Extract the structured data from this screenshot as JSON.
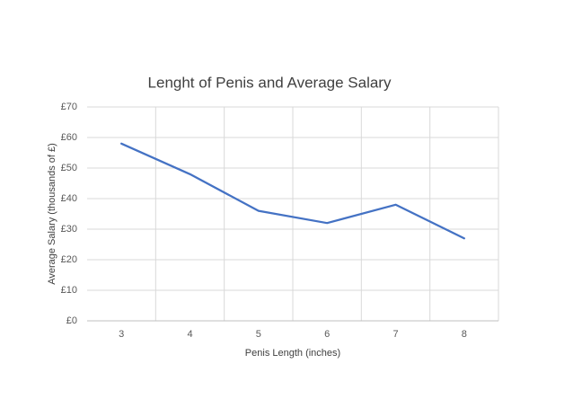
{
  "chart_data": {
    "type": "line",
    "title": "Lenght of Penis and Average Salary",
    "x_label": "Penis Length (inches)",
    "y_label": "Average Salary (thousands of £)",
    "categories": [
      "3",
      "4",
      "5",
      "6",
      "7",
      "8"
    ],
    "values": [
      58,
      48,
      36,
      32,
      38,
      27
    ],
    "color": "#4472c4",
    "ylim": [
      0,
      70
    ],
    "yticks": [
      {
        "value": 0,
        "label": "£0"
      },
      {
        "value": 10,
        "label": "£10"
      },
      {
        "value": 20,
        "label": "£20"
      },
      {
        "value": 30,
        "label": "£30"
      },
      {
        "value": 40,
        "label": "£40"
      },
      {
        "value": 50,
        "label": "£50"
      },
      {
        "value": 60,
        "label": "£60"
      },
      {
        "value": 70,
        "label": "£70"
      }
    ],
    "grid": true
  }
}
